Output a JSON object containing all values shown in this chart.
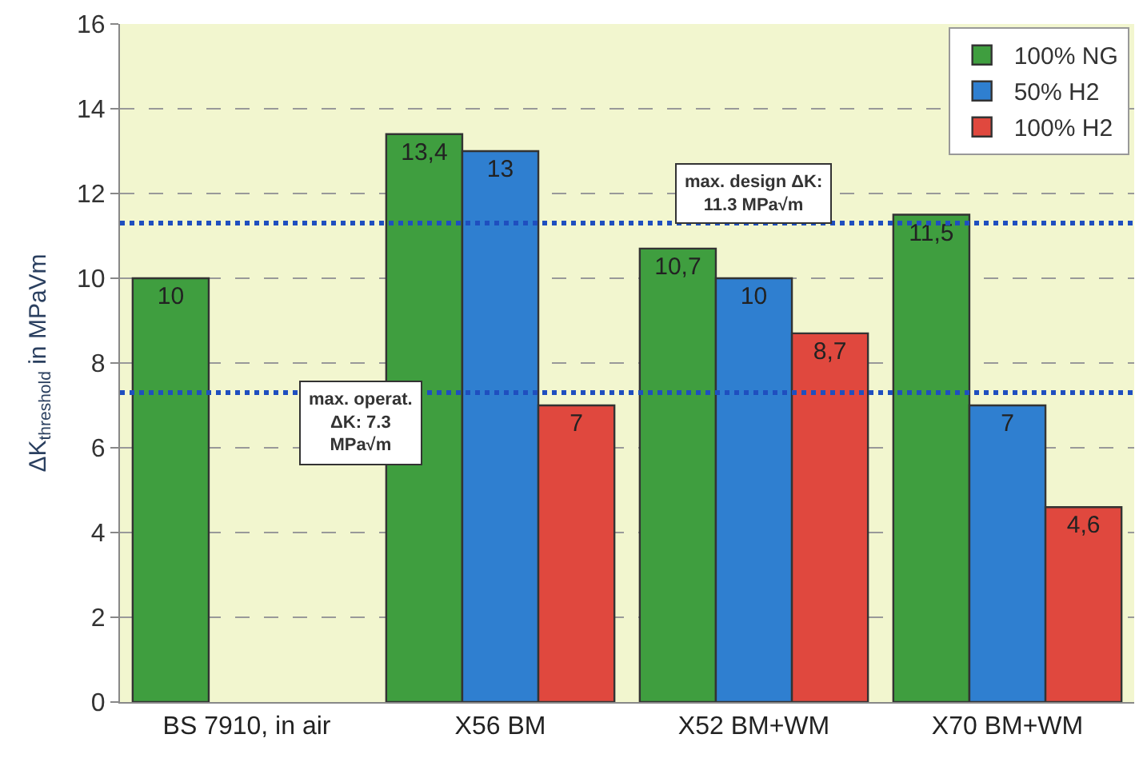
{
  "chart_data": {
    "type": "bar",
    "ylabel": "ΔK$_{threshold}$ in MPaVm",
    "categories": [
      "BS 7910, in air",
      "X56 BM",
      "X52 BM+WM",
      "X70 BM+WM"
    ],
    "series": [
      {
        "name": "100% NG",
        "color": "#3f9e3f",
        "values": [
          10,
          13.4,
          10.7,
          11.5
        ],
        "value_labels": [
          "10",
          "13,4",
          "10,7",
          "11,5"
        ]
      },
      {
        "name": "50% H2",
        "color": "#2f7fd0",
        "values": [
          null,
          13,
          10,
          7
        ],
        "value_labels": [
          null,
          "13",
          "10",
          "7"
        ]
      },
      {
        "name": "100% H2",
        "color": "#e0483e",
        "values": [
          null,
          7,
          8.7,
          4.6
        ],
        "value_labels": [
          null,
          "7",
          "8,7",
          "4,6"
        ]
      }
    ],
    "ylim": [
      0,
      16
    ],
    "yticks": [
      0,
      2,
      4,
      6,
      8,
      10,
      12,
      14,
      16
    ],
    "grid": "y",
    "legend": "top right",
    "ref_lines": [
      {
        "axis": "y",
        "value": 11.3,
        "label": "max. design ΔK:\n11.3 MPa√m",
        "color": "#1f4fbf",
        "line_style": "dotted"
      },
      {
        "axis": "y",
        "value": 7.3,
        "label": "max. operat.\nΔK: 7.3\nMPa√m",
        "color": "#1f4fbf",
        "line_style": "dotted"
      }
    ]
  }
}
